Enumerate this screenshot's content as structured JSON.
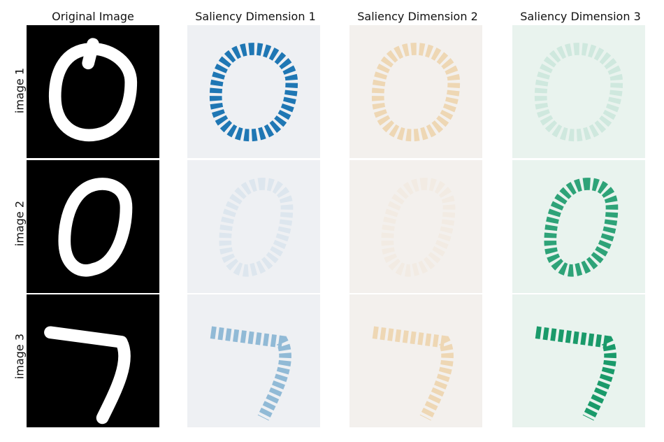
{
  "columns": {
    "original": "Original Image",
    "dim1": "Saliency Dimension 1",
    "dim2": "Saliency Dimension 2",
    "dim3": "Saliency Dimension 3"
  },
  "rows": {
    "r1": "image 1",
    "r2": "image 2",
    "r3": "image 3"
  },
  "colors": {
    "original_bg": "#000000",
    "original_stroke": "#ffffff",
    "dim1_bg": "#eef0f3",
    "dim1_accent": "#1f77b4",
    "dim2_bg": "#f3f0ed",
    "dim2_accent": "#e6a84a",
    "dim3_bg": "#e9f3ee",
    "dim3_accent": "#1a9a6a"
  },
  "intensity": {
    "r1": [
      1.0,
      0.35,
      0.12
    ],
    "r2": [
      0.08,
      0.06,
      0.9
    ],
    "r3": [
      0.45,
      0.35,
      1.0
    ]
  }
}
